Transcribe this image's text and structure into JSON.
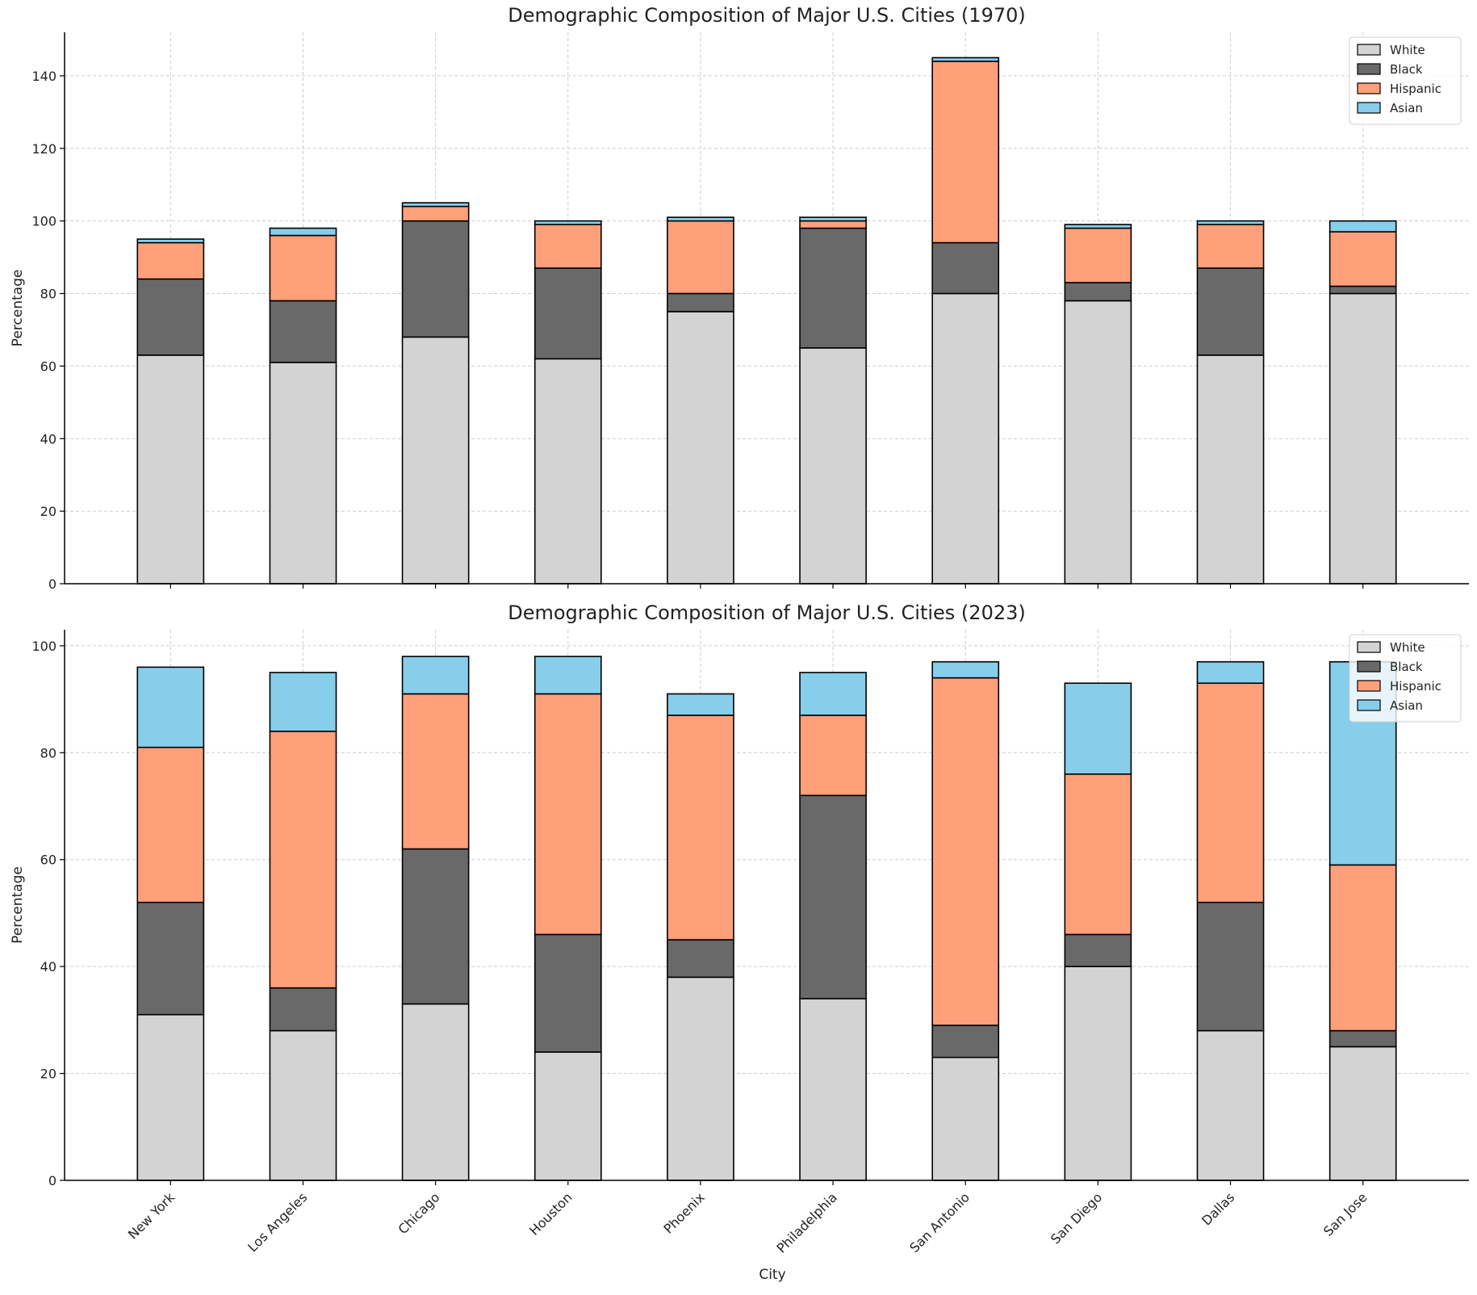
{
  "figure": {
    "xlabel": "City"
  },
  "chart_data": [
    {
      "type": "bar",
      "stacked": true,
      "title": "Demographic Composition of Major U.S. Cities (1970)",
      "xlabel": "",
      "ylabel": "Percentage",
      "ylim": [
        0,
        152
      ],
      "yticks": [
        0,
        20,
        40,
        60,
        80,
        100,
        120,
        140
      ],
      "grid": true,
      "legend_position": "top-right",
      "categories": [
        "New York",
        "Los Angeles",
        "Chicago",
        "Houston",
        "Phoenix",
        "Philadelphia",
        "San Antonio",
        "San Diego",
        "Dallas",
        "San Jose"
      ],
      "series": [
        {
          "name": "White",
          "color": "#d3d3d3",
          "values": [
            63,
            61,
            68,
            62,
            75,
            65,
            80,
            78,
            63,
            80
          ]
        },
        {
          "name": "Black",
          "color": "#696969",
          "values": [
            21,
            17,
            32,
            25,
            5,
            33,
            14,
            5,
            24,
            2
          ]
        },
        {
          "name": "Hispanic",
          "color": "#ffa07a",
          "values": [
            10,
            18,
            4,
            12,
            20,
            2,
            50,
            15,
            12,
            15
          ]
        },
        {
          "name": "Asian",
          "color": "#87ceeb",
          "values": [
            1,
            2,
            1,
            1,
            1,
            1,
            1,
            1,
            1,
            3
          ]
        }
      ]
    },
    {
      "type": "bar",
      "stacked": true,
      "title": "Demographic Composition of Major U.S. Cities (2023)",
      "xlabel": "City",
      "ylabel": "Percentage",
      "ylim": [
        0,
        103
      ],
      "yticks": [
        0,
        20,
        40,
        60,
        80,
        100
      ],
      "grid": true,
      "legend_position": "top-right",
      "categories": [
        "New York",
        "Los Angeles",
        "Chicago",
        "Houston",
        "Phoenix",
        "Philadelphia",
        "San Antonio",
        "San Diego",
        "Dallas",
        "San Jose"
      ],
      "series": [
        {
          "name": "White",
          "color": "#d3d3d3",
          "values": [
            31,
            28,
            33,
            24,
            38,
            34,
            23,
            40,
            28,
            25
          ]
        },
        {
          "name": "Black",
          "color": "#696969",
          "values": [
            21,
            8,
            29,
            22,
            7,
            38,
            6,
            6,
            24,
            3
          ]
        },
        {
          "name": "Hispanic",
          "color": "#ffa07a",
          "values": [
            29,
            48,
            29,
            45,
            42,
            15,
            65,
            30,
            41,
            31
          ]
        },
        {
          "name": "Asian",
          "color": "#87ceeb",
          "values": [
            15,
            11,
            7,
            7,
            4,
            8,
            3,
            17,
            4,
            38
          ]
        }
      ]
    }
  ]
}
